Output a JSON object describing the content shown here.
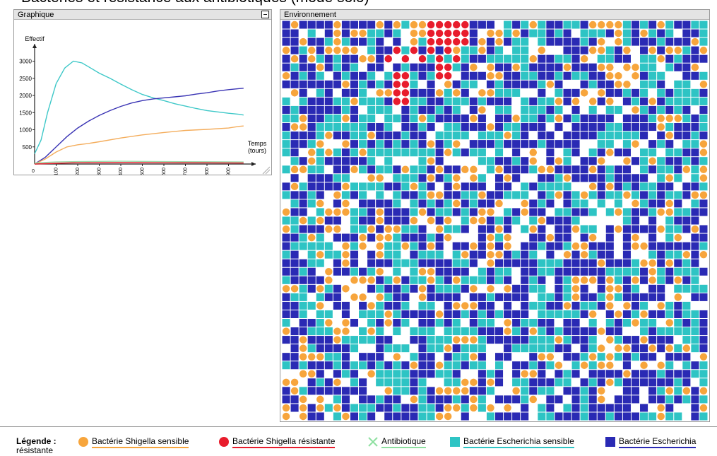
{
  "page_title": "Bacteries et resistance aux antibiotiques (mode solo)",
  "graph_panel": {
    "title": "Graphique"
  },
  "env_panel": {
    "title": "Environnement"
  },
  "legend": {
    "title": "Légende :",
    "title_cont": "résistante",
    "items": [
      {
        "label": "Bactérie Shigella sensible",
        "color": "#f7a53c",
        "icon": "orange-circle-icon"
      },
      {
        "label": "Bactérie Shigella résistante",
        "color": "#e81c2c",
        "icon": "red-circle-icon"
      },
      {
        "label": "Antibiotique",
        "color": "#8ee0a0",
        "icon": "cross-icon"
      },
      {
        "label": "Bactérie Escherichia sensible",
        "color": "#2ec4c4",
        "icon": "teal-square-icon"
      },
      {
        "label": "Bactérie Escherichia",
        "color": "#2a2ab4",
        "icon": "blue-square-icon"
      }
    ]
  },
  "chart_data": {
    "type": "line",
    "ylabel": "Effectif",
    "xlabel": "Temps (tours)",
    "xlim": [
      0,
      1000
    ],
    "ylim": [
      0,
      3300
    ],
    "x_ticks": [
      100,
      200,
      300,
      400,
      500,
      600,
      700,
      800,
      900
    ],
    "y_ticks": [
      500,
      1000,
      1500,
      2000,
      2500,
      3000
    ],
    "series": [
      {
        "color": "#3ec8c8",
        "x": [
          0,
          30,
          60,
          100,
          140,
          180,
          220,
          260,
          300,
          350,
          400,
          450,
          500,
          550,
          600,
          650,
          700,
          750,
          800,
          850,
          900,
          950,
          970
        ],
        "y": [
          300,
          700,
          1500,
          2350,
          2800,
          3000,
          2950,
          2800,
          2650,
          2500,
          2330,
          2170,
          2030,
          1930,
          1850,
          1760,
          1690,
          1620,
          1560,
          1520,
          1480,
          1450,
          1430
        ]
      },
      {
        "color": "#3a34b4",
        "x": [
          0,
          50,
          100,
          150,
          200,
          250,
          300,
          350,
          400,
          450,
          500,
          550,
          600,
          650,
          700,
          750,
          800,
          850,
          900,
          950,
          970
        ],
        "y": [
          0,
          200,
          500,
          800,
          1050,
          1250,
          1420,
          1560,
          1680,
          1780,
          1850,
          1900,
          1930,
          1960,
          1990,
          2040,
          2080,
          2130,
          2170,
          2200,
          2210
        ]
      },
      {
        "color": "#f4ad5c",
        "x": [
          0,
          50,
          100,
          150,
          200,
          250,
          300,
          400,
          500,
          600,
          700,
          800,
          900,
          950,
          970
        ],
        "y": [
          0,
          150,
          350,
          500,
          560,
          600,
          650,
          760,
          850,
          920,
          980,
          1010,
          1050,
          1100,
          1110
        ]
      },
      {
        "color": "#e81c2c",
        "x": [
          0,
          100,
          200,
          400,
          600,
          800,
          970
        ],
        "y": [
          0,
          20,
          40,
          45,
          40,
          35,
          30
        ]
      },
      {
        "color": "#9ad8a6",
        "x": [
          0,
          100,
          200,
          400,
          600,
          800,
          970
        ],
        "y": [
          30,
          60,
          70,
          80,
          70,
          65,
          60
        ]
      }
    ]
  },
  "grid": {
    "cols": 50,
    "rows": 47
  }
}
